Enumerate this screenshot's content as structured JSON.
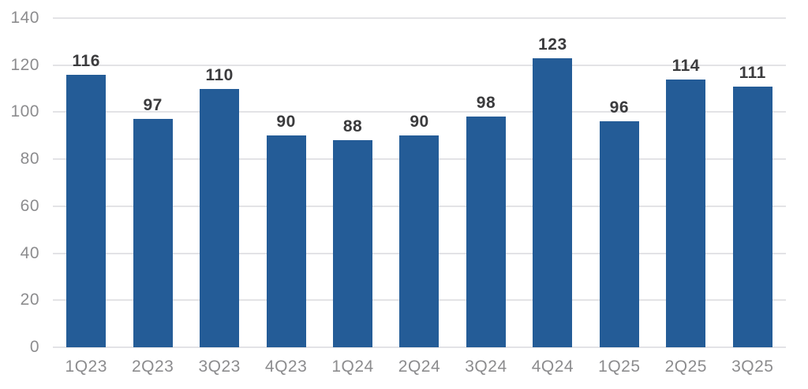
{
  "chart_data": {
    "type": "bar",
    "title": "",
    "xlabel": "",
    "ylabel": "",
    "categories": [
      "1Q23",
      "2Q23",
      "3Q23",
      "4Q23",
      "1Q24",
      "2Q24",
      "3Q24",
      "4Q24",
      "1Q25",
      "2Q25",
      "3Q25"
    ],
    "values": [
      116,
      97,
      110,
      90,
      88,
      90,
      98,
      123,
      96,
      114,
      111
    ],
    "ylim": [
      0,
      140
    ],
    "yticks": [
      0,
      20,
      40,
      60,
      80,
      100,
      120,
      140
    ],
    "grid": true,
    "legend": false,
    "value_labels_shown": true,
    "colors": {
      "bar": "#245C97",
      "gridline": "#E3E3E6",
      "axis_text": "#8C8C8E",
      "value_text": "#3B3B3D",
      "background": "#FFFFFF"
    }
  }
}
